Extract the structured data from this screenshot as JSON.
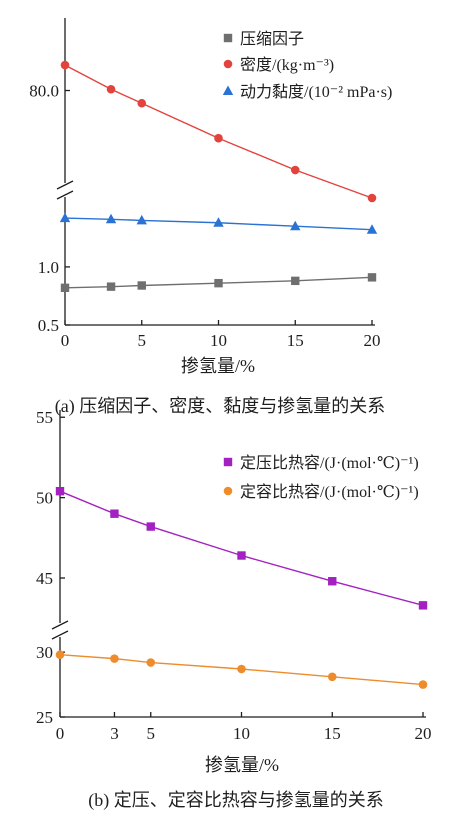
{
  "chart_data": [
    {
      "type": "line",
      "x": [
        0,
        3,
        5,
        10,
        15,
        20
      ],
      "xlim": [
        0,
        20
      ],
      "x_ticks": [
        0,
        5,
        10,
        15,
        20
      ],
      "xlabel": "掺氢量/%",
      "y_axis_break": true,
      "y_segments": [
        {
          "ylim": [
            0.5,
            1.55
          ],
          "ticks": [
            {
              "value": 0.5,
              "label": "0.5"
            },
            {
              "value": 1.0,
              "label": "1.0"
            }
          ]
        },
        {
          "ylim": [
            62,
            91.4
          ],
          "ticks": [
            {
              "value": 80,
              "label": "80.0"
            }
          ]
        }
      ],
      "series": [
        {
          "name": "压缩因子",
          "segment": 0,
          "marker": "square",
          "color": "#6f6f6f",
          "values": [
            0.82,
            0.83,
            0.84,
            0.86,
            0.88,
            0.91
          ]
        },
        {
          "name": "密度/(kg·m⁻³)",
          "segment": 1,
          "marker": "circle",
          "color": "#e3433d",
          "values": [
            84.0,
            80.2,
            78.0,
            72.5,
            67.5,
            63.1
          ]
        },
        {
          "name": "动力黏度/(10⁻² mPa·s)",
          "segment": 0,
          "marker": "triangle",
          "color": "#2a72d4",
          "values": [
            1.42,
            1.41,
            1.4,
            1.38,
            1.35,
            1.32
          ]
        }
      ],
      "legend": "top-right",
      "grid": false,
      "caption": "(a) 压缩因子、密度、黏度与掺氢量的关系"
    },
    {
      "type": "line",
      "x": [
        0,
        3,
        5,
        10,
        15,
        20
      ],
      "xlim": [
        0,
        20
      ],
      "x_ticks": [
        0,
        3,
        5,
        10,
        15,
        20
      ],
      "xlabel": "掺氢量/%",
      "y_axis_break": true,
      "y_segments": [
        {
          "ylim": [
            25,
            30.55
          ],
          "ticks": [
            {
              "value": 25,
              "label": "25"
            },
            {
              "value": 30,
              "label": "30"
            }
          ]
        },
        {
          "ylim": [
            42.7,
            55.45
          ],
          "ticks": [
            {
              "value": 45,
              "label": "45"
            },
            {
              "value": 50,
              "label": "50"
            },
            {
              "value": 55,
              "label": "55"
            }
          ]
        }
      ],
      "series": [
        {
          "name": "定压比热容/(J·(mol·℃)⁻¹)",
          "segment": 1,
          "marker": "square",
          "color": "#a321c0",
          "values": [
            50.4,
            49.0,
            48.2,
            46.4,
            44.8,
            43.3
          ]
        },
        {
          "name": "定容比热容/(J·(mol·℃)⁻¹)",
          "segment": 0,
          "marker": "circle",
          "color": "#ee8c2c",
          "values": [
            29.8,
            29.5,
            29.2,
            28.7,
            28.1,
            27.5
          ]
        }
      ],
      "legend": "top-right",
      "grid": false,
      "caption": "(b) 定压、定容比热容与掺氢量的关系"
    }
  ]
}
